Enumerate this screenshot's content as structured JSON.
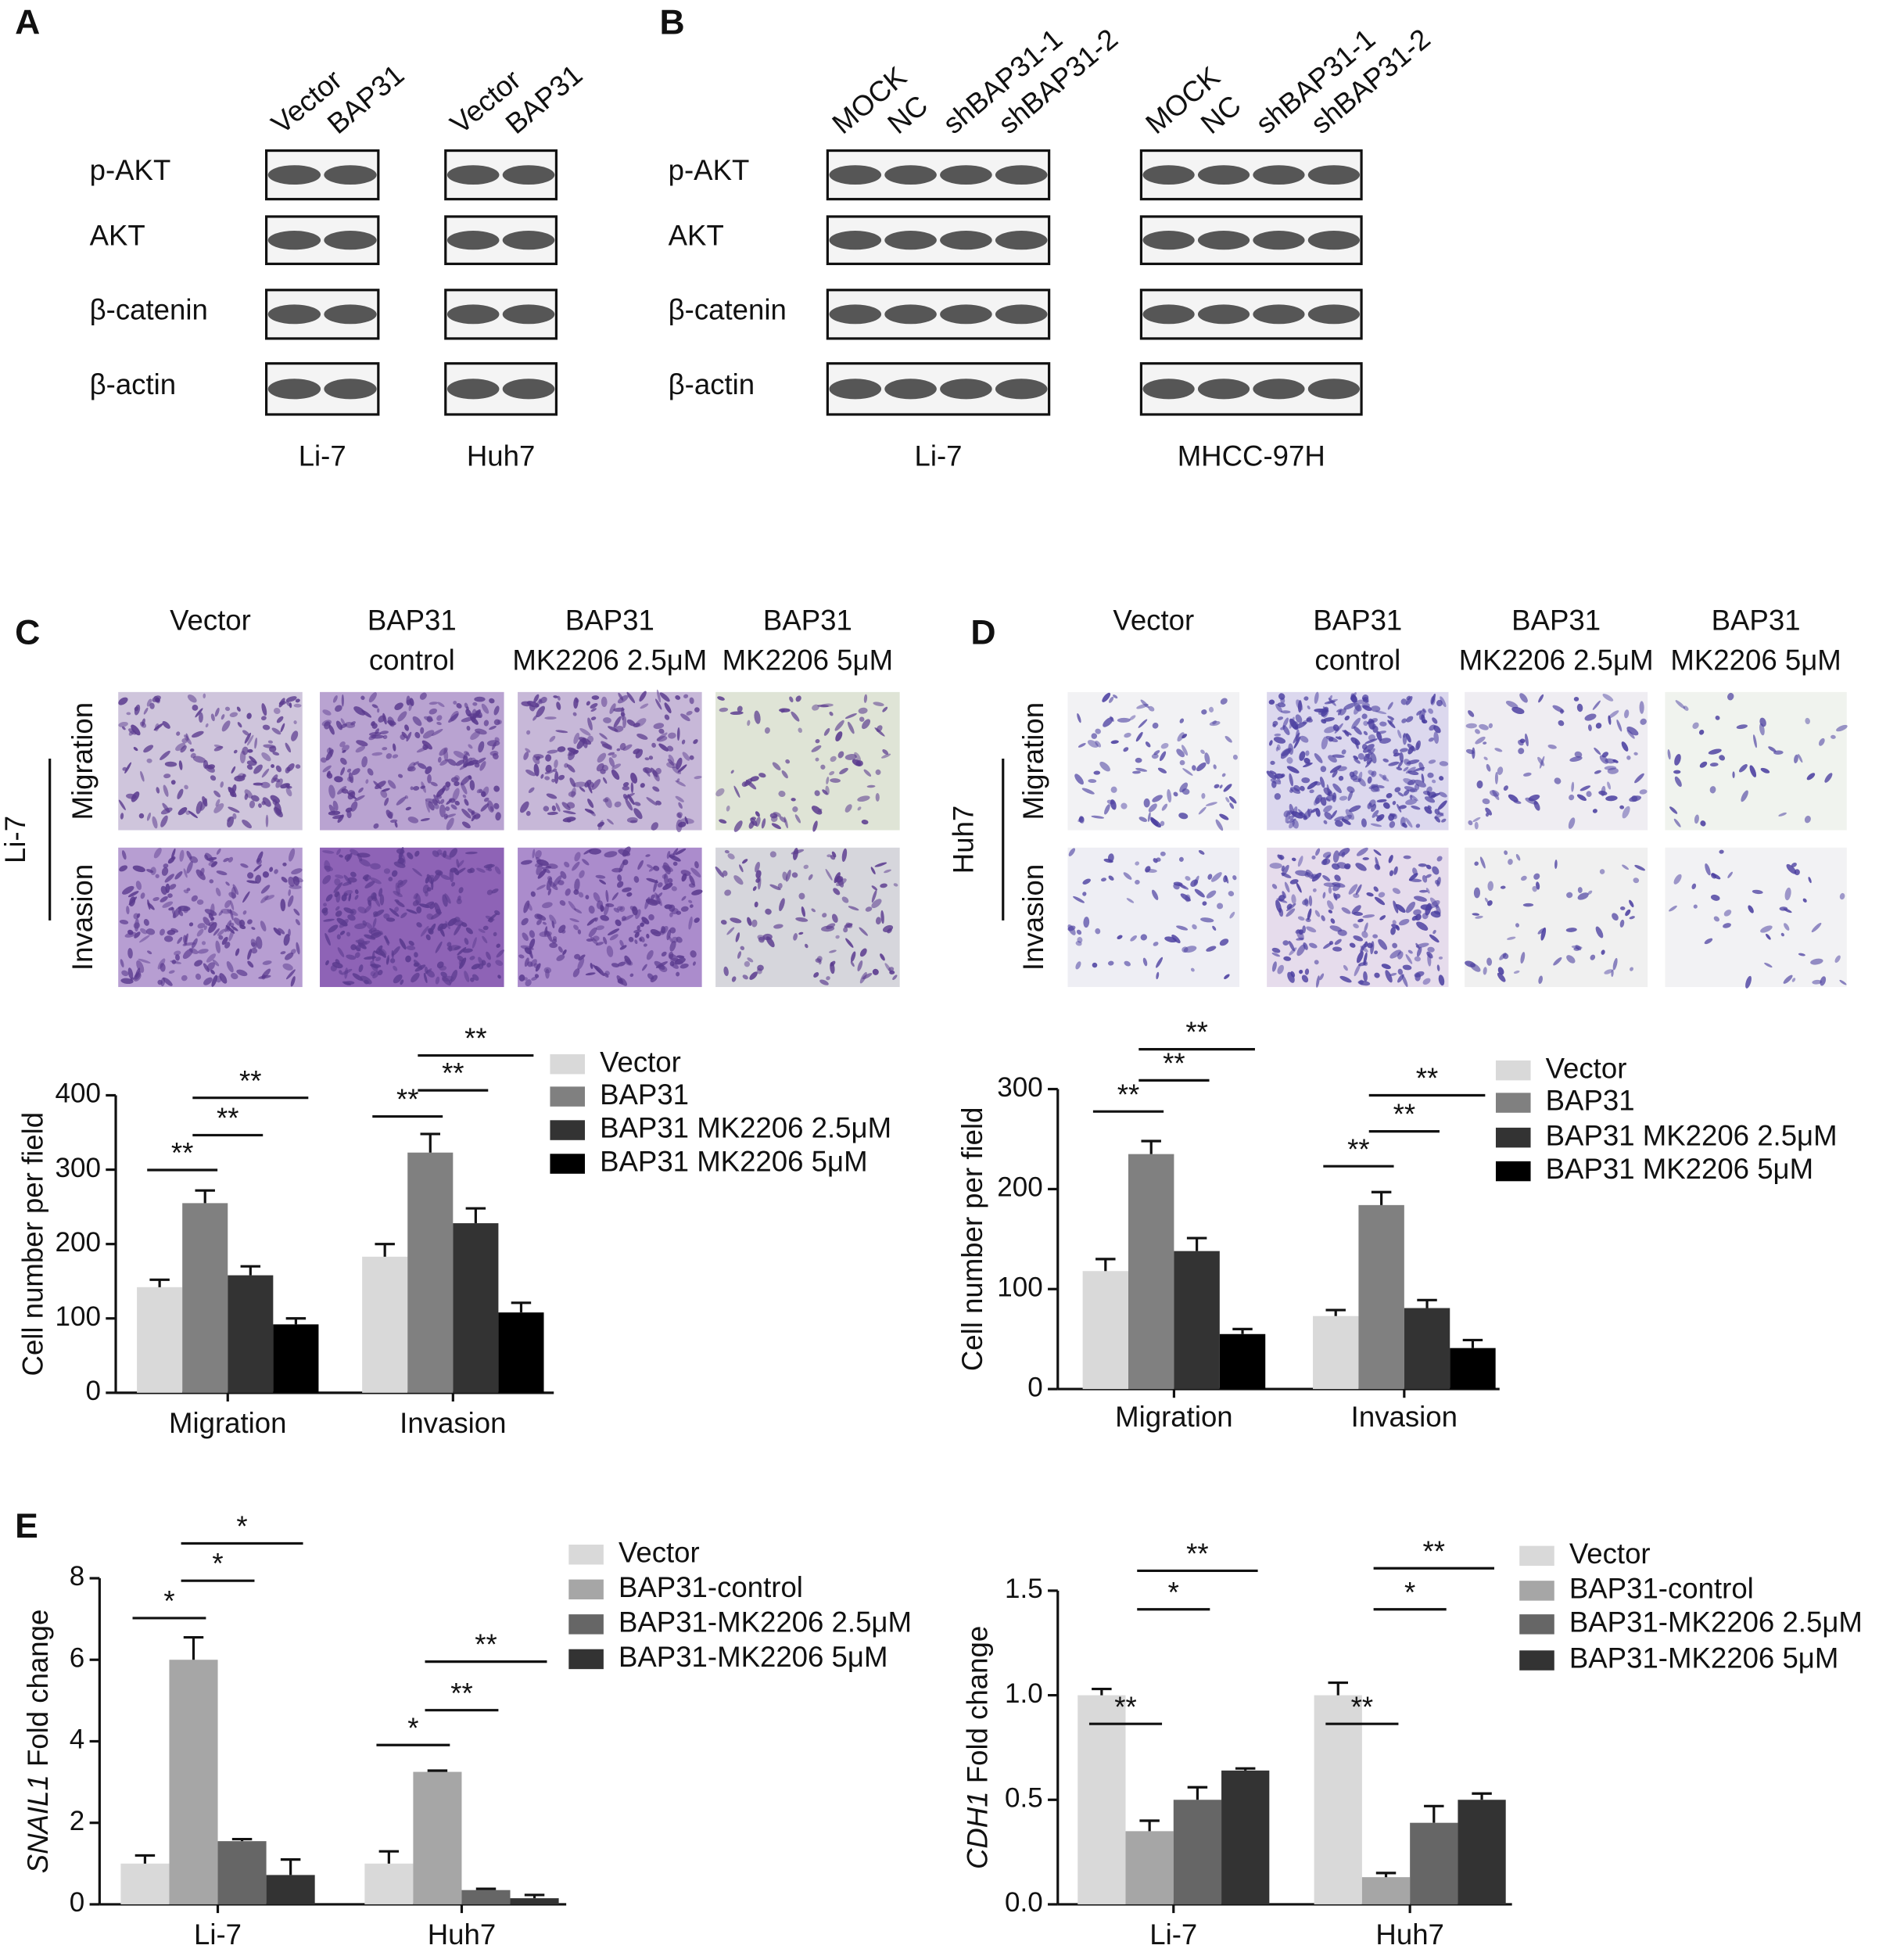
{
  "panel_a": {
    "label": "A",
    "lanes": [
      [
        "Vector",
        "BAP31"
      ],
      [
        "Vector",
        "BAP31"
      ]
    ],
    "rows": [
      "p-AKT",
      "AKT",
      "β-catenin",
      "β-actin"
    ],
    "cell_lines": [
      "Li-7",
      "Huh7"
    ]
  },
  "panel_b": {
    "label": "B",
    "lanes": [
      [
        "MOCK",
        "NC",
        "shBAP31-1",
        "shBAP31-2"
      ],
      [
        "MOCK",
        "NC",
        "shBAP31-1",
        "shBAP31-2"
      ]
    ],
    "rows": [
      "p-AKT",
      "AKT",
      "β-catenin",
      "β-actin"
    ],
    "cell_lines": [
      "Li-7",
      "MHCC-97H"
    ]
  },
  "panel_c": {
    "label": "C",
    "columns": [
      [
        "Vector"
      ],
      [
        "BAP31",
        "control"
      ],
      [
        "BAP31",
        "MK2206 2.5μM"
      ],
      [
        "BAP31",
        "MK2206 5μM"
      ]
    ],
    "rows": [
      "Migration",
      "Invasion"
    ],
    "cell_line": "Li-7"
  },
  "panel_d": {
    "label": "D",
    "columns": [
      [
        "Vector"
      ],
      [
        "BAP31",
        "control"
      ],
      [
        "BAP31",
        "MK2206 2.5μM"
      ],
      [
        "BAP31",
        "MK2206 5μM"
      ]
    ],
    "rows": [
      "Migration",
      "Invasion"
    ],
    "cell_line": "Huh7"
  },
  "panel_e": {
    "label": "E"
  },
  "chart_data": [
    {
      "type": "bar",
      "categories": [
        "Migration",
        "Invasion"
      ],
      "ylabel": "Cell number per field",
      "ylim": [
        0,
        400
      ],
      "yticks": [
        0,
        100,
        200,
        300,
        400
      ],
      "series": [
        {
          "name": "Vector",
          "color": "#d9d9d9",
          "values": [
            142,
            183
          ],
          "errors": [
            10,
            17
          ]
        },
        {
          "name": "BAP31",
          "color": "#808080",
          "values": [
            255,
            323
          ],
          "errors": [
            17,
            25
          ]
        },
        {
          "name": "BAP31 MK2206 2.5μM",
          "color": "#333333",
          "values": [
            158,
            228
          ],
          "errors": [
            12,
            20
          ]
        },
        {
          "name": "BAP31 MK2206 5μM",
          "color": "#000000",
          "values": [
            92,
            108
          ],
          "errors": [
            8,
            13
          ]
        }
      ],
      "annotations": [
        "**",
        "**",
        "**",
        "**",
        "**",
        "**"
      ]
    },
    {
      "type": "bar",
      "categories": [
        "Migration",
        "Invasion"
      ],
      "ylabel": "Cell number per field",
      "ylim": [
        0,
        300
      ],
      "yticks": [
        0,
        100,
        200,
        300
      ],
      "series": [
        {
          "name": "Vector",
          "color": "#d9d9d9",
          "values": [
            118,
            73
          ],
          "errors": [
            12,
            6
          ]
        },
        {
          "name": "BAP31",
          "color": "#808080",
          "values": [
            235,
            184
          ],
          "errors": [
            13,
            13
          ]
        },
        {
          "name": "BAP31 MK2206 2.5μM",
          "color": "#333333",
          "values": [
            138,
            81
          ],
          "errors": [
            13,
            8
          ]
        },
        {
          "name": "BAP31 MK2206 5μM",
          "color": "#000000",
          "values": [
            55,
            41
          ],
          "errors": [
            5,
            8
          ]
        }
      ],
      "annotations": [
        "**",
        "**",
        "**",
        "**",
        "**",
        "**"
      ]
    },
    {
      "type": "bar",
      "categories": [
        "Li-7",
        "Huh7"
      ],
      "ylabel": [
        "SNAIL1",
        " Fold change"
      ],
      "ylim": [
        0,
        8
      ],
      "yticks": [
        0,
        2,
        4,
        6,
        8
      ],
      "series": [
        {
          "name": "Vector",
          "color": "#d9d9d9",
          "values": [
            1.0,
            1.0
          ],
          "errors": [
            0.2,
            0.3
          ]
        },
        {
          "name": "BAP31-control",
          "color": "#a6a6a6",
          "values": [
            6.0,
            3.25
          ],
          "errors": [
            0.55,
            0.03
          ]
        },
        {
          "name": "BAP31-MK2206 2.5μM",
          "color": "#666666",
          "values": [
            1.55,
            0.35
          ],
          "errors": [
            0.05,
            0.03
          ]
        },
        {
          "name": "BAP31-MK2206 5μM",
          "color": "#333333",
          "values": [
            0.72,
            0.15
          ],
          "errors": [
            0.38,
            0.08
          ]
        }
      ],
      "annotations": [
        "*",
        "*",
        "*",
        "*",
        "**",
        "**"
      ]
    },
    {
      "type": "bar",
      "categories": [
        "Li-7",
        "Huh7"
      ],
      "ylabel": [
        "CDH1",
        " Fold change"
      ],
      "ylim": [
        0,
        1.5
      ],
      "yticks": [
        {
          "value": 0,
          "label": "0.0"
        },
        0.5,
        {
          "value": 1,
          "label": "1.0"
        },
        1.5
      ],
      "series": [
        {
          "name": "Vector",
          "color": "#d9d9d9",
          "values": [
            1.0,
            1.0
          ],
          "errors": [
            0.03,
            0.06
          ]
        },
        {
          "name": "BAP31-control",
          "color": "#a6a6a6",
          "values": [
            0.35,
            0.13
          ],
          "errors": [
            0.05,
            0.02
          ]
        },
        {
          "name": "BAP31-MK2206 2.5μM",
          "color": "#666666",
          "values": [
            0.5,
            0.39
          ],
          "errors": [
            0.06,
            0.08
          ]
        },
        {
          "name": "BAP31-MK2206 5μM",
          "color": "#333333",
          "values": [
            0.64,
            0.5
          ],
          "errors": [
            0.01,
            0.03
          ]
        }
      ],
      "annotations": [
        "**",
        "*",
        "**",
        "**",
        "*",
        "**"
      ]
    }
  ]
}
